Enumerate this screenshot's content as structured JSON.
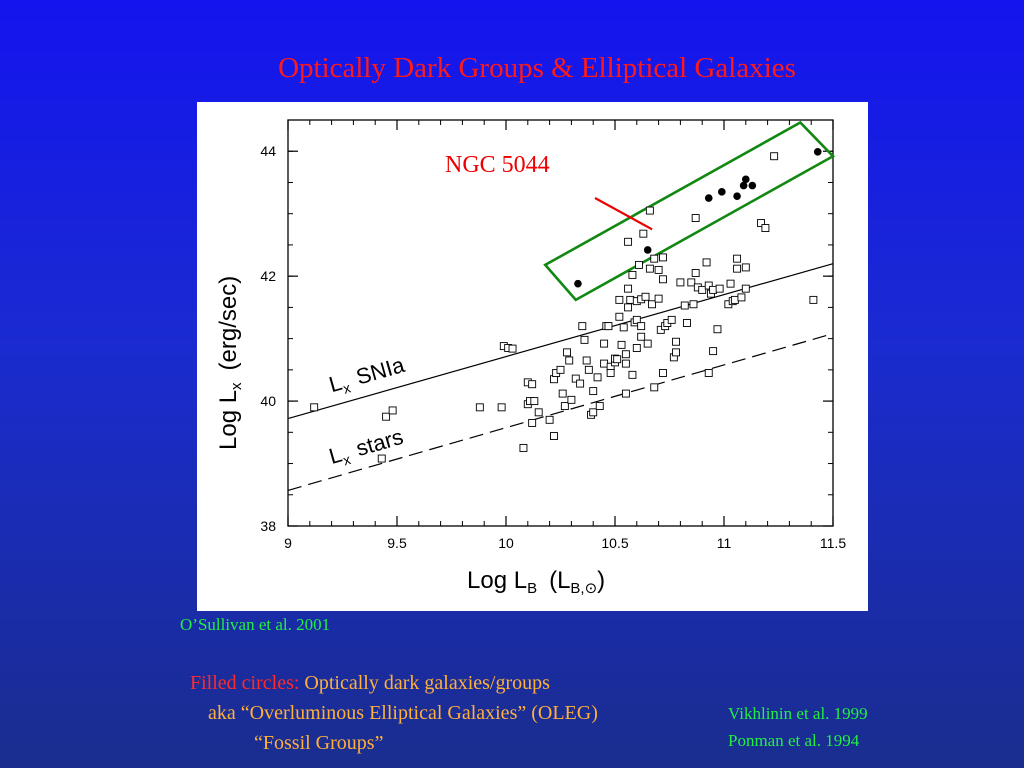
{
  "slide": {
    "title": "Optically Dark Groups & Elliptical Galaxies",
    "citation": "O’Sullivan et al. 2001",
    "legend": {
      "label": "Filled circles:",
      "description": "Optically dark galaxies/groups",
      "aka": "aka “Overluminous Elliptical Galaxies” (OLEG)",
      "fossil": "“Fossil Groups”"
    },
    "references": [
      "Vikhlinin et al. 1999",
      "Ponman et al. 1994"
    ]
  },
  "colors": {
    "title": "#ff1a1a",
    "citation": "#22ee44",
    "callout": "#ee0000",
    "highlight_box": "#118811"
  },
  "chart_data": {
    "type": "scatter",
    "title": "",
    "xlabel_main": "Log L",
    "xlabel_sub": "B",
    "xlabel_paren": "(L",
    "xlabel_paren_sub": "B,⊙",
    "xlabel_close": ")",
    "ylabel_main": "Log L",
    "ylabel_sub": "x",
    "ylabel_unit": "(erg/sec)",
    "xlim": [
      9,
      11.5
    ],
    "ylim": [
      38,
      44.5
    ],
    "x_ticks": [
      9,
      9.5,
      10,
      10.5,
      11,
      11.5
    ],
    "x_tick_labels": [
      "9",
      "9.5",
      "10",
      "10.5",
      "11",
      "11.5"
    ],
    "y_ticks": [
      38,
      40,
      42,
      44
    ],
    "y_tick_labels": [
      "38",
      "40",
      "42",
      "44"
    ],
    "grid": false,
    "lines": [
      {
        "label_main": "L",
        "label_sub": "x",
        "label_rest": "SNIa",
        "style": "solid",
        "x": [
          9,
          11.5
        ],
        "y": [
          39.72,
          42.2
        ]
      },
      {
        "label_main": "L",
        "label_sub": "x",
        "label_rest": "stars",
        "style": "dashed",
        "x": [
          9,
          11.5
        ],
        "y": [
          38.57,
          41.08
        ]
      }
    ],
    "annotation": {
      "text": "NGC 5044",
      "x": 10.67,
      "y": 42.75
    },
    "highlight_box": {
      "x": [
        10.18,
        10.32,
        11.5,
        11.35
      ],
      "y": [
        42.18,
        41.62,
        43.92,
        44.46
      ]
    },
    "series": [
      {
        "marker": "open-square",
        "points": [
          [
            9.12,
            39.9
          ],
          [
            9.45,
            39.75
          ],
          [
            9.48,
            39.85
          ],
          [
            9.43,
            39.08
          ],
          [
            9.88,
            39.9
          ],
          [
            9.98,
            39.9
          ],
          [
            9.99,
            40.88
          ],
          [
            10.01,
            40.85
          ],
          [
            10.03,
            40.84
          ],
          [
            10.08,
            39.25
          ],
          [
            10.1,
            39.95
          ],
          [
            10.1,
            40.3
          ],
          [
            10.11,
            40.0
          ],
          [
            10.12,
            39.65
          ],
          [
            10.12,
            40.27
          ],
          [
            10.13,
            40.0
          ],
          [
            10.15,
            39.82
          ],
          [
            10.2,
            39.7
          ],
          [
            10.22,
            40.35
          ],
          [
            10.23,
            40.45
          ],
          [
            10.22,
            39.44
          ],
          [
            10.25,
            40.5
          ],
          [
            10.26,
            40.12
          ],
          [
            10.27,
            39.92
          ],
          [
            10.28,
            40.78
          ],
          [
            10.29,
            40.65
          ],
          [
            10.3,
            40.02
          ],
          [
            10.32,
            40.36
          ],
          [
            10.34,
            40.28
          ],
          [
            10.35,
            41.2
          ],
          [
            10.36,
            40.98
          ],
          [
            10.37,
            40.65
          ],
          [
            10.38,
            40.5
          ],
          [
            10.39,
            39.78
          ],
          [
            10.4,
            40.16
          ],
          [
            10.4,
            39.82
          ],
          [
            10.42,
            40.38
          ],
          [
            10.43,
            39.92
          ],
          [
            10.45,
            40.92
          ],
          [
            10.45,
            40.6
          ],
          [
            10.46,
            41.2
          ],
          [
            10.47,
            41.2
          ],
          [
            10.48,
            40.55
          ],
          [
            10.5,
            40.62
          ],
          [
            10.5,
            40.68
          ],
          [
            10.51,
            40.67
          ],
          [
            10.52,
            41.35
          ],
          [
            10.52,
            41.62
          ],
          [
            10.53,
            40.9
          ],
          [
            10.54,
            41.18
          ],
          [
            10.55,
            40.75
          ],
          [
            10.55,
            40.12
          ],
          [
            10.56,
            41.8
          ],
          [
            10.56,
            41.5
          ],
          [
            10.57,
            41.62
          ],
          [
            10.58,
            40.42
          ],
          [
            10.58,
            42.02
          ],
          [
            10.59,
            41.26
          ],
          [
            10.6,
            41.3
          ],
          [
            10.6,
            41.6
          ],
          [
            10.6,
            40.85
          ],
          [
            10.61,
            42.18
          ],
          [
            10.62,
            41.63
          ],
          [
            10.62,
            41.03
          ],
          [
            10.63,
            42.68
          ],
          [
            10.64,
            41.67
          ],
          [
            10.65,
            40.92
          ],
          [
            10.66,
            42.12
          ],
          [
            10.67,
            41.55
          ],
          [
            10.68,
            42.28
          ],
          [
            10.68,
            40.22
          ],
          [
            10.7,
            42.1
          ],
          [
            10.7,
            41.64
          ],
          [
            10.71,
            41.14
          ],
          [
            10.72,
            42.3
          ],
          [
            10.72,
            40.45
          ],
          [
            10.72,
            41.95
          ],
          [
            10.73,
            41.2
          ],
          [
            10.74,
            41.25
          ],
          [
            10.76,
            41.3
          ],
          [
            10.77,
            40.7
          ],
          [
            10.78,
            40.95
          ],
          [
            10.8,
            41.9
          ],
          [
            10.82,
            41.53
          ],
          [
            10.83,
            41.25
          ],
          [
            10.85,
            41.9
          ],
          [
            10.86,
            41.55
          ],
          [
            10.87,
            42.05
          ],
          [
            10.88,
            41.82
          ],
          [
            10.9,
            41.78
          ],
          [
            10.92,
            42.22
          ],
          [
            10.93,
            41.85
          ],
          [
            10.93,
            40.45
          ],
          [
            10.94,
            41.72
          ],
          [
            10.95,
            41.78
          ],
          [
            10.97,
            41.15
          ],
          [
            10.98,
            41.8
          ],
          [
            11.02,
            41.55
          ],
          [
            11.03,
            41.88
          ],
          [
            11.04,
            41.6
          ],
          [
            11.05,
            41.62
          ],
          [
            11.06,
            42.12
          ],
          [
            11.06,
            42.28
          ],
          [
            11.08,
            41.66
          ],
          [
            11.1,
            42.14
          ],
          [
            11.1,
            41.8
          ],
          [
            11.17,
            42.85
          ],
          [
            11.19,
            42.77
          ],
          [
            11.41,
            41.62
          ],
          [
            10.95,
            40.8
          ],
          [
            11.23,
            43.92
          ],
          [
            10.87,
            42.93
          ],
          [
            10.62,
            41.2
          ],
          [
            10.78,
            40.78
          ],
          [
            10.55,
            40.6
          ],
          [
            10.48,
            40.45
          ],
          [
            10.66,
            43.05
          ],
          [
            10.56,
            42.55
          ]
        ]
      },
      {
        "marker": "filled-circle",
        "points": [
          [
            10.33,
            41.88
          ],
          [
            10.65,
            42.42
          ],
          [
            10.93,
            43.25
          ],
          [
            10.99,
            43.35
          ],
          [
            11.06,
            43.28
          ],
          [
            11.09,
            43.45
          ],
          [
            11.1,
            43.55
          ],
          [
            11.13,
            43.45
          ],
          [
            11.43,
            43.99
          ]
        ]
      }
    ]
  }
}
